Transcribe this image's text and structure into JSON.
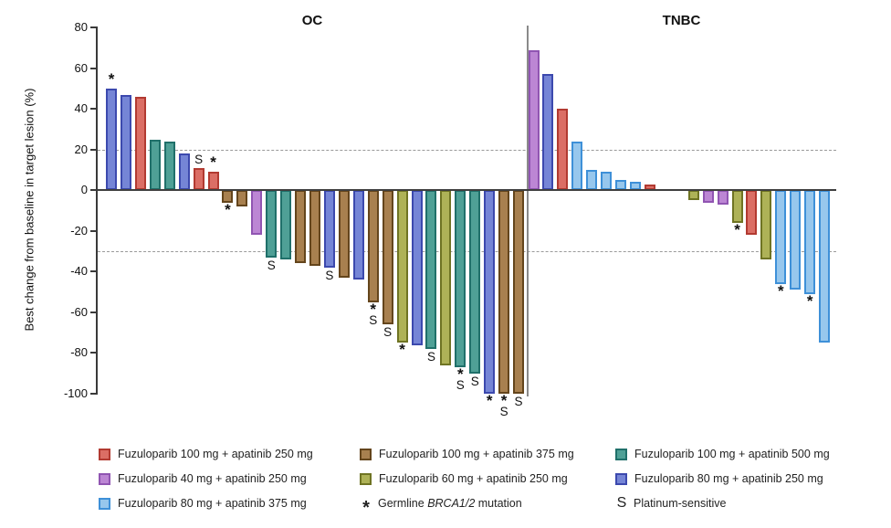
{
  "chart_data": {
    "type": "bar",
    "subtype": "waterfall",
    "ylabel": "Best change from baseline in target lesion (%)",
    "ylim": [
      -100,
      80
    ],
    "yticks": [
      80,
      60,
      40,
      20,
      0,
      -20,
      -40,
      -60,
      -80,
      -100
    ],
    "reference_lines": [
      20,
      -30
    ],
    "grid": "dashed-reference-only",
    "mark_meanings": {
      "*": "Germline BRCA1/2 mutation",
      "S": "Platinum-sensitive"
    },
    "groups": {
      "fz100_ap250": {
        "label": "Fuzuloparib 100 mg + apatinib 250 mg",
        "fill": "#DB6E65",
        "border": "#B23A31"
      },
      "fz100_ap375": {
        "label": "Fuzuloparib 100 mg + apatinib 375 mg",
        "fill": "#A8804F",
        "border": "#64451C"
      },
      "fz100_ap500": {
        "label": "Fuzuloparib 100 mg + apatinib 500 mg",
        "fill": "#4FA096",
        "border": "#20706A"
      },
      "fz40_ap250": {
        "label": "Fuzuloparib 40 mg + apatinib 250 mg",
        "fill": "#BC86D4",
        "border": "#9055B2"
      },
      "fz60_ap250": {
        "label": "Fuzuloparib 60 mg + apatinib 250 mg",
        "fill": "#AEB257",
        "border": "#6F7423"
      },
      "fz80_ap250": {
        "label": "Fuzuloparib 80 mg + apatinib 250 mg",
        "fill": "#7585D6",
        "border": "#3C49AE"
      },
      "fz80_ap375": {
        "label": "Fuzuloparib 80 mg + apatinib 375 mg",
        "fill": "#97C7ED",
        "border": "#3E90D8"
      }
    },
    "panels": [
      {
        "title": "OC",
        "bars": [
          {
            "value": 50,
            "group": "fz80_ap250",
            "mark": "*"
          },
          {
            "value": 47,
            "group": "fz80_ap250",
            "mark": ""
          },
          {
            "value": 46,
            "group": "fz100_ap250",
            "mark": ""
          },
          {
            "value": 25,
            "group": "fz100_ap500",
            "mark": ""
          },
          {
            "value": 24,
            "group": "fz100_ap500",
            "mark": ""
          },
          {
            "value": 18,
            "group": "fz80_ap250",
            "mark": ""
          },
          {
            "value": 11,
            "group": "fz100_ap250",
            "mark": "S"
          },
          {
            "value": 9,
            "group": "fz100_ap250",
            "mark": "*"
          },
          {
            "value": -6,
            "group": "fz100_ap375",
            "mark": "*"
          },
          {
            "value": -8,
            "group": "fz100_ap375",
            "mark": ""
          },
          {
            "value": -22,
            "group": "fz40_ap250",
            "mark": ""
          },
          {
            "value": -33,
            "group": "fz100_ap500",
            "mark": "S"
          },
          {
            "value": -34,
            "group": "fz100_ap500",
            "mark": ""
          },
          {
            "value": -36,
            "group": "fz100_ap375",
            "mark": ""
          },
          {
            "value": -37,
            "group": "fz100_ap375",
            "mark": ""
          },
          {
            "value": -38,
            "group": "fz80_ap250",
            "mark": "S"
          },
          {
            "value": -43,
            "group": "fz100_ap375",
            "mark": ""
          },
          {
            "value": -44,
            "group": "fz80_ap250",
            "mark": ""
          },
          {
            "value": -55,
            "group": "fz100_ap375",
            "mark": "*S"
          },
          {
            "value": -66,
            "group": "fz100_ap375",
            "mark": "S"
          },
          {
            "value": -75,
            "group": "fz60_ap250",
            "mark": "*"
          },
          {
            "value": -76,
            "group": "fz80_ap250",
            "mark": ""
          },
          {
            "value": -78,
            "group": "fz100_ap500",
            "mark": "S"
          },
          {
            "value": -86,
            "group": "fz60_ap250",
            "mark": ""
          },
          {
            "value": -87,
            "group": "fz100_ap500",
            "mark": "*S"
          },
          {
            "value": -90,
            "group": "fz100_ap500",
            "mark": "S"
          },
          {
            "value": -100,
            "group": "fz80_ap250",
            "mark": "*"
          },
          {
            "value": -100,
            "group": "fz100_ap375",
            "mark": "*S"
          },
          {
            "value": -100,
            "group": "fz100_ap375",
            "mark": "S"
          }
        ]
      },
      {
        "title": "TNBC",
        "bars": [
          {
            "value": 69,
            "group": "fz40_ap250",
            "mark": ""
          },
          {
            "value": 57,
            "group": "fz80_ap250",
            "mark": ""
          },
          {
            "value": 40,
            "group": "fz100_ap250",
            "mark": ""
          },
          {
            "value": 24,
            "group": "fz80_ap375",
            "mark": ""
          },
          {
            "value": 10,
            "group": "fz80_ap375",
            "mark": ""
          },
          {
            "value": 9,
            "group": "fz80_ap375",
            "mark": ""
          },
          {
            "value": 5,
            "group": "fz80_ap375",
            "mark": ""
          },
          {
            "value": 4,
            "group": "fz80_ap375",
            "mark": ""
          },
          {
            "value": 3,
            "group": "fz100_ap250",
            "mark": ""
          },
          {
            "value": -5,
            "group": "fz60_ap250",
            "mark": ""
          },
          {
            "value": -6,
            "group": "fz40_ap250",
            "mark": ""
          },
          {
            "value": -7,
            "group": "fz40_ap250",
            "mark": ""
          },
          {
            "value": -16,
            "group": "fz60_ap250",
            "mark": "*"
          },
          {
            "value": -22,
            "group": "fz100_ap250",
            "mark": ""
          },
          {
            "value": -34,
            "group": "fz60_ap250",
            "mark": ""
          },
          {
            "value": -46,
            "group": "fz80_ap375",
            "mark": "*"
          },
          {
            "value": -49,
            "group": "fz80_ap375",
            "mark": ""
          },
          {
            "value": -51,
            "group": "fz80_ap375",
            "mark": "*"
          },
          {
            "value": -75,
            "group": "fz80_ap375",
            "mark": ""
          }
        ]
      }
    ]
  },
  "legend": {
    "entries": [
      {
        "type": "swatch",
        "group": "fz100_ap250"
      },
      {
        "type": "swatch",
        "group": "fz100_ap375"
      },
      {
        "type": "swatch",
        "group": "fz100_ap500"
      },
      {
        "type": "swatch",
        "group": "fz40_ap250"
      },
      {
        "type": "swatch",
        "group": "fz60_ap250"
      },
      {
        "type": "swatch",
        "group": "fz80_ap250"
      },
      {
        "type": "swatch",
        "group": "fz80_ap375"
      },
      {
        "type": "symbol",
        "symbol": "*",
        "label_prefix": "Germline ",
        "label_italic": "BRCA1/2",
        "label_suffix": " mutation"
      },
      {
        "type": "symbol",
        "symbol": "S",
        "label_prefix": "Platinum-sensitive",
        "label_italic": "",
        "label_suffix": ""
      }
    ]
  }
}
